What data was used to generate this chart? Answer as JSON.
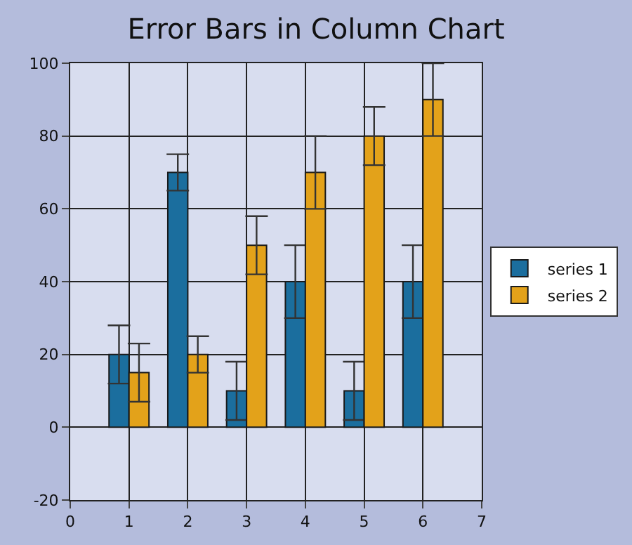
{
  "chart_data": {
    "type": "bar",
    "title": "Error Bars in Column Chart",
    "x": [
      1,
      2,
      3,
      4,
      5,
      6
    ],
    "series": [
      {
        "name": "series 1",
        "color": "#1b6e9e",
        "values": [
          20,
          70,
          10,
          40,
          10,
          40
        ],
        "errors": [
          8,
          5,
          8,
          10,
          8,
          10
        ]
      },
      {
        "name": "series 2",
        "color": "#e3a21a",
        "values": [
          15,
          20,
          50,
          70,
          80,
          90
        ],
        "errors": [
          8,
          5,
          8,
          10,
          8,
          10
        ]
      }
    ],
    "xlim": [
      0,
      7
    ],
    "xticks": [
      0,
      1,
      2,
      3,
      4,
      5,
      6,
      7
    ],
    "ylim": [
      -20,
      100
    ],
    "yticks": [
      -20,
      0,
      20,
      40,
      60,
      80,
      100
    ],
    "grid": true,
    "legend": "right"
  }
}
